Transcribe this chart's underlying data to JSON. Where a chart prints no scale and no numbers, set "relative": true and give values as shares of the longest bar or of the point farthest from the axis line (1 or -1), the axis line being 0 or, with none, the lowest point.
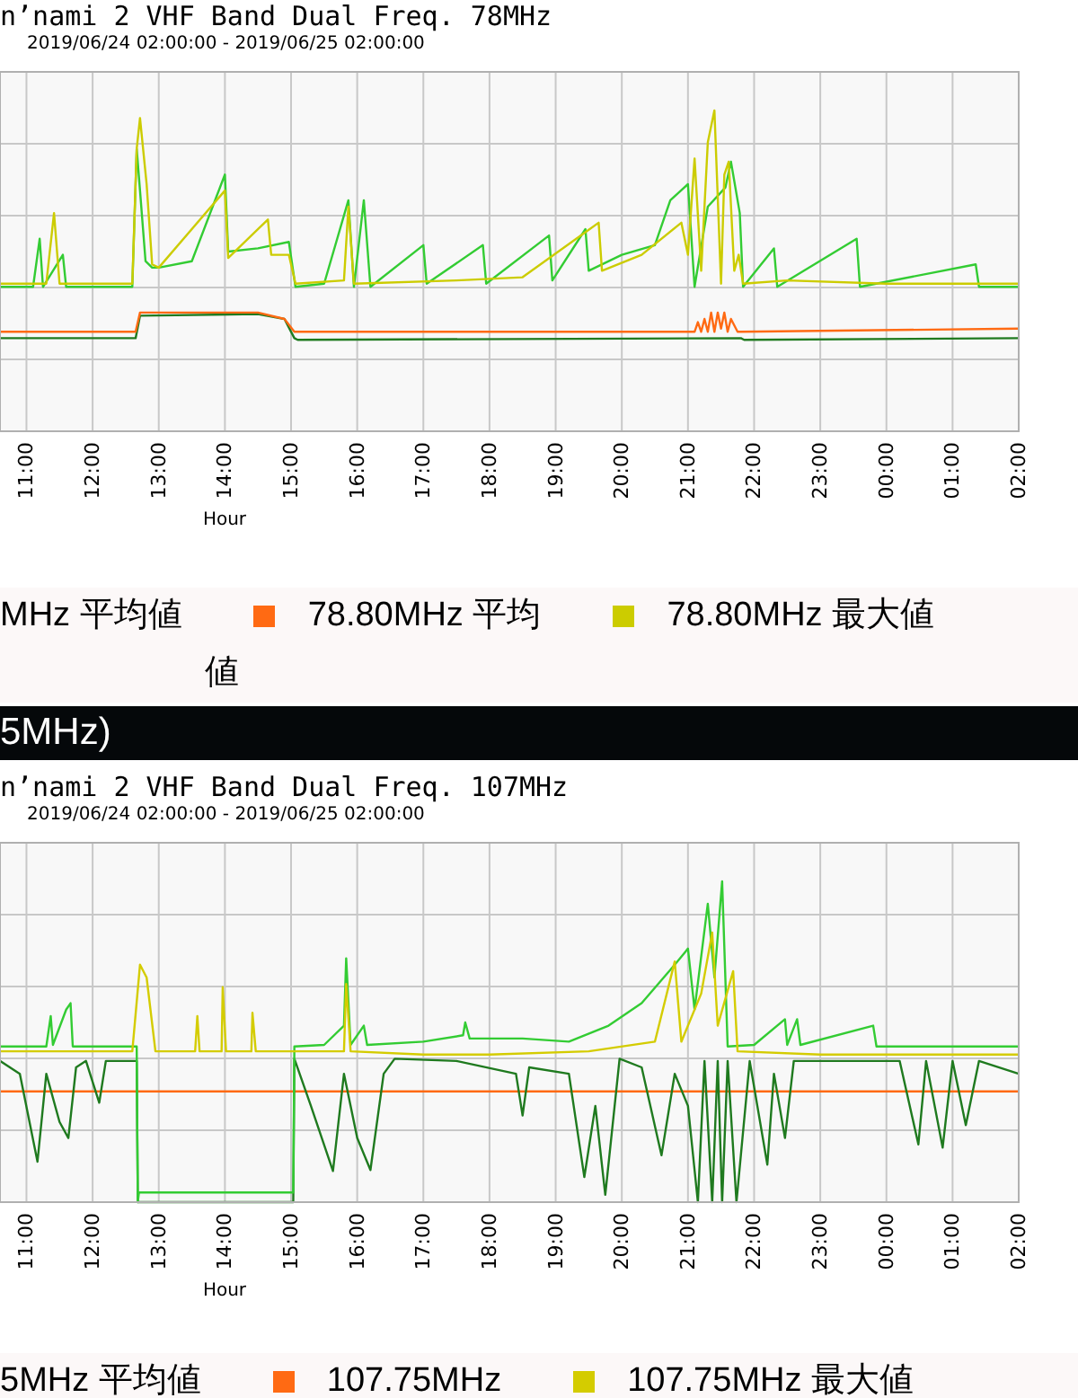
{
  "chart_data": [
    {
      "type": "line",
      "title": "n’nami 2 VHF Band Dual Freq. 78MHz",
      "subtitle": "2019/06/24 02:00:00 - 2019/06/25 02:00:00",
      "xlabel": "Hour",
      "xlim": [
        "2019-06-24T10:36",
        "2019-06-25T02:00"
      ],
      "xticks": [
        {
          "value": "2019-06-24T11:00",
          "label": "11:00"
        },
        {
          "value": "2019-06-24T12:00",
          "label": "12:00"
        },
        {
          "value": "2019-06-24T13:00",
          "label": "13:00"
        },
        {
          "value": "2019-06-24T14:00",
          "label": "14:00"
        },
        {
          "value": "2019-06-24T15:00",
          "label": "15:00"
        },
        {
          "value": "2019-06-24T16:00",
          "label": "16:00"
        },
        {
          "value": "2019-06-24T17:00",
          "label": "17:00"
        },
        {
          "value": "2019-06-24T18:00",
          "label": "18:00"
        },
        {
          "value": "2019-06-24T19:00",
          "label": "19:00"
        },
        {
          "value": "2019-06-24T20:00",
          "label": "20:00"
        },
        {
          "value": "2019-06-24T21:00",
          "label": "21:00"
        },
        {
          "value": "2019-06-24T22:00",
          "label": "22:00"
        },
        {
          "value": "2019-06-24T23:00",
          "label": "23:00"
        },
        {
          "value": "2019-06-25T00:00",
          "label": "00:00"
        },
        {
          "value": "2019-06-25T01:00",
          "label": "01:00"
        },
        {
          "value": "2019-06-25T02:00",
          "label": "02:00"
        }
      ],
      "relative": true,
      "grid": true,
      "legend": "bottom",
      "annotations": [
        "MHz 平均値",
        "値",
        "5MHz)"
      ],
      "series": [
        {
          "color": "#1f7a1f",
          "x": [
            "2019-06-24T10:36",
            "2019-06-24T12:39",
            "2019-06-24T12:43",
            "2019-06-24T14:30",
            "2019-06-24T14:54",
            "2019-06-24T15:03",
            "2019-06-24T15:06",
            "2019-06-24T21:48",
            "2019-06-24T21:51",
            "2019-06-25T02:00"
          ],
          "values": [
            0.29,
            0.29,
            0.36,
            0.365,
            0.35,
            0.29,
            0.285,
            0.29,
            0.285,
            0.29
          ]
        },
        {
          "name": "78.80MHz 平均",
          "color": "#ff6a13",
          "x": [
            "2019-06-24T10:36",
            "2019-06-24T12:39",
            "2019-06-24T12:43",
            "2019-06-24T13:30",
            "2019-06-24T14:30",
            "2019-06-24T14:54",
            "2019-06-24T15:03",
            "2019-06-24T15:06",
            "2019-06-24T21:06",
            "2019-06-24T21:09",
            "2019-06-24T21:12",
            "2019-06-24T21:15",
            "2019-06-24T21:18",
            "2019-06-24T21:21",
            "2019-06-24T21:24",
            "2019-06-24T21:27",
            "2019-06-24T21:30",
            "2019-06-24T21:33",
            "2019-06-24T21:36",
            "2019-06-24T21:39",
            "2019-06-24T21:45",
            "2019-06-24T21:48",
            "2019-06-25T02:00"
          ],
          "values": [
            0.31,
            0.31,
            0.37,
            0.37,
            0.37,
            0.35,
            0.31,
            0.31,
            0.31,
            0.34,
            0.31,
            0.35,
            0.31,
            0.37,
            0.31,
            0.37,
            0.32,
            0.37,
            0.31,
            0.35,
            0.31,
            0.31,
            0.32
          ]
        },
        {
          "color": "#33cc33",
          "x": [
            "2019-06-24T10:36",
            "2019-06-24T11:06",
            "2019-06-24T11:12",
            "2019-06-24T11:15",
            "2019-06-24T11:33",
            "2019-06-24T11:36",
            "2019-06-24T11:42",
            "2019-06-24T12:36",
            "2019-06-24T12:40",
            "2019-06-24T12:43",
            "2019-06-24T12:48",
            "2019-06-24T12:54",
            "2019-06-24T13:00",
            "2019-06-24T13:30",
            "2019-06-24T14:00",
            "2019-06-24T14:03",
            "2019-06-24T14:30",
            "2019-06-24T14:58",
            "2019-06-24T15:04",
            "2019-06-24T15:30",
            "2019-06-24T15:52",
            "2019-06-24T15:57",
            "2019-06-24T16:06",
            "2019-06-24T16:12",
            "2019-06-24T17:00",
            "2019-06-24T17:03",
            "2019-06-24T17:54",
            "2019-06-24T17:57",
            "2019-06-24T18:54",
            "2019-06-24T18:57",
            "2019-06-24T19:27",
            "2019-06-24T19:30",
            "2019-06-24T20:00",
            "2019-06-24T20:30",
            "2019-06-24T20:44",
            "2019-06-24T21:00",
            "2019-06-24T21:06",
            "2019-06-24T21:18",
            "2019-06-24T21:34",
            "2019-06-24T21:39",
            "2019-06-24T21:47",
            "2019-06-24T21:50",
            "2019-06-24T22:18",
            "2019-06-24T22:21",
            "2019-06-24T23:33",
            "2019-06-24T23:36",
            "2019-06-25T01:21",
            "2019-06-25T01:24",
            "2019-06-25T02:00"
          ],
          "values": [
            0.45,
            0.45,
            0.6,
            0.45,
            0.55,
            0.45,
            0.45,
            0.45,
            0.88,
            0.75,
            0.53,
            0.51,
            0.51,
            0.53,
            0.8,
            0.56,
            0.57,
            0.59,
            0.45,
            0.46,
            0.72,
            0.45,
            0.72,
            0.45,
            0.58,
            0.46,
            0.58,
            0.46,
            0.61,
            0.47,
            0.63,
            0.5,
            0.55,
            0.58,
            0.72,
            0.77,
            0.45,
            0.7,
            0.76,
            0.84,
            0.68,
            0.45,
            0.57,
            0.45,
            0.6,
            0.45,
            0.52,
            0.45,
            0.45
          ]
        },
        {
          "name": "78.80MHz 最大値",
          "color": "#cccc00",
          "x": [
            "2019-06-24T10:36",
            "2019-06-24T11:18",
            "2019-06-24T11:25",
            "2019-06-24T11:30",
            "2019-06-24T12:36",
            "2019-06-24T12:40",
            "2019-06-24T12:43",
            "2019-06-24T12:49",
            "2019-06-24T12:54",
            "2019-06-24T13:00",
            "2019-06-24T14:00",
            "2019-06-24T14:03",
            "2019-06-24T14:39",
            "2019-06-24T14:42",
            "2019-06-24T14:58",
            "2019-06-24T15:04",
            "2019-06-24T15:48",
            "2019-06-24T15:52",
            "2019-06-24T15:57",
            "2019-06-24T17:30",
            "2019-06-24T18:30",
            "2019-06-24T19:39",
            "2019-06-24T19:42",
            "2019-06-24T20:18",
            "2019-06-24T20:54",
            "2019-06-24T21:00",
            "2019-06-24T21:06",
            "2019-06-24T21:12",
            "2019-06-24T21:18",
            "2019-06-24T21:24",
            "2019-06-24T21:30",
            "2019-06-24T21:33",
            "2019-06-24T21:37",
            "2019-06-24T21:42",
            "2019-06-24T21:46",
            "2019-06-24T21:50",
            "2019-06-24T22:30",
            "2019-06-25T00:00",
            "2019-06-25T02:00"
          ],
          "values": [
            0.46,
            0.46,
            0.68,
            0.46,
            0.46,
            0.88,
            0.976,
            0.77,
            0.52,
            0.51,
            0.75,
            0.54,
            0.66,
            0.55,
            0.55,
            0.46,
            0.47,
            0.7,
            0.46,
            0.47,
            0.48,
            0.65,
            0.5,
            0.55,
            0.65,
            0.55,
            0.85,
            0.5,
            0.9,
            1.0,
            0.46,
            0.8,
            0.84,
            0.5,
            0.55,
            0.46,
            0.47,
            0.46,
            0.46
          ]
        }
      ]
    },
    {
      "type": "line",
      "title": "n’nami 2 VHF Band Dual Freq. 107MHz",
      "subtitle": "2019/06/24 02:00:00 - 2019/06/25 02:00:00",
      "xlabel": "Hour",
      "xlim": [
        "2019-06-24T10:36",
        "2019-06-25T02:00"
      ],
      "xticks": [
        {
          "value": "2019-06-24T11:00",
          "label": "11:00"
        },
        {
          "value": "2019-06-24T12:00",
          "label": "12:00"
        },
        {
          "value": "2019-06-24T13:00",
          "label": "13:00"
        },
        {
          "value": "2019-06-24T14:00",
          "label": "14:00"
        },
        {
          "value": "2019-06-24T15:00",
          "label": "15:00"
        },
        {
          "value": "2019-06-24T16:00",
          "label": "16:00"
        },
        {
          "value": "2019-06-24T17:00",
          "label": "17:00"
        },
        {
          "value": "2019-06-24T18:00",
          "label": "18:00"
        },
        {
          "value": "2019-06-24T19:00",
          "label": "19:00"
        },
        {
          "value": "2019-06-24T20:00",
          "label": "20:00"
        },
        {
          "value": "2019-06-24T21:00",
          "label": "21:00"
        },
        {
          "value": "2019-06-24T22:00",
          "label": "22:00"
        },
        {
          "value": "2019-06-24T23:00",
          "label": "23:00"
        },
        {
          "value": "2019-06-25T00:00",
          "label": "00:00"
        },
        {
          "value": "2019-06-25T01:00",
          "label": "01:00"
        },
        {
          "value": "2019-06-25T02:00",
          "label": "02:00"
        }
      ],
      "relative": true,
      "grid": true,
      "legend": "bottom",
      "annotations": [
        "5MHz 平均値"
      ],
      "series": [
        {
          "name": "107.75MHz",
          "color": "#ff6a13",
          "x": [
            "2019-06-24T10:36",
            "2019-06-25T02:00"
          ],
          "values": [
            0.345,
            0.345
          ]
        },
        {
          "color": "#1f7a1f",
          "x": [
            "2019-06-24T10:36",
            "2019-06-24T10:54",
            "2019-06-24T11:10",
            "2019-06-24T11:18",
            "2019-06-24T11:30",
            "2019-06-24T11:38",
            "2019-06-24T11:45",
            "2019-06-24T11:54",
            "2019-06-24T12:06",
            "2019-06-24T12:12",
            "2019-06-24T12:40",
            "2019-06-24T12:41",
            "2019-06-24T15:02",
            "2019-06-24T15:03",
            "2019-06-24T15:18",
            "2019-06-24T15:38",
            "2019-06-24T15:48",
            "2019-06-24T16:00",
            "2019-06-24T16:12",
            "2019-06-24T16:24",
            "2019-06-24T16:34",
            "2019-06-24T17:30",
            "2019-06-24T18:24",
            "2019-06-24T18:30",
            "2019-06-24T18:36",
            "2019-06-24T19:12",
            "2019-06-24T19:26",
            "2019-06-24T19:36",
            "2019-06-24T19:45",
            "2019-06-24T19:58",
            "2019-06-24T20:18",
            "2019-06-24T20:36",
            "2019-06-24T20:48",
            "2019-06-24T21:00",
            "2019-06-24T21:09",
            "2019-06-24T21:15",
            "2019-06-24T21:22",
            "2019-06-24T21:27",
            "2019-06-24T21:31",
            "2019-06-24T21:36",
            "2019-06-24T21:44",
            "2019-06-24T21:56",
            "2019-06-24T22:12",
            "2019-06-24T22:18",
            "2019-06-24T22:28",
            "2019-06-24T22:36",
            "2019-06-25T00:12",
            "2019-06-25T00:29",
            "2019-06-25T00:36",
            "2019-06-25T00:51",
            "2019-06-25T01:00",
            "2019-06-25T01:12",
            "2019-06-25T01:24",
            "2019-06-25T02:00"
          ],
          "values": [
            0.44,
            0.4,
            0.126,
            0.4,
            0.25,
            0.2,
            0.42,
            0.44,
            0.31,
            0.44,
            0.44,
            0,
            0,
            0.447,
            0.3,
            0.097,
            0.4,
            0.2,
            0.1,
            0.4,
            0.447,
            0.44,
            0.4,
            0.27,
            0.42,
            0.4,
            0.078,
            0.3,
            0.023,
            0.447,
            0.42,
            0.146,
            0.4,
            0.3,
            0,
            0.44,
            0,
            0.44,
            0,
            0.44,
            0,
            0.44,
            0.117,
            0.4,
            0.2,
            0.44,
            0.44,
            0.18,
            0.44,
            0.17,
            0.44,
            0.24,
            0.44,
            0.4
          ]
        },
        {
          "color": "#33cc33",
          "x": [
            "2019-06-24T10:36",
            "2019-06-24T11:18",
            "2019-06-24T11:22",
            "2019-06-24T11:24",
            "2019-06-24T11:36",
            "2019-06-24T11:40",
            "2019-06-24T11:42",
            "2019-06-24T12:40",
            "2019-06-24T12:41",
            "2019-06-24T12:42",
            "2019-06-24T13:30",
            "2019-06-24T14:30",
            "2019-06-24T15:02",
            "2019-06-24T15:03",
            "2019-06-24T15:30",
            "2019-06-24T15:48",
            "2019-06-24T15:50",
            "2019-06-24T15:54",
            "2019-06-24T16:06",
            "2019-06-24T16:09",
            "2019-06-24T17:00",
            "2019-06-24T17:36",
            "2019-06-24T17:38",
            "2019-06-24T17:42",
            "2019-06-24T18:30",
            "2019-06-24T19:12",
            "2019-06-24T19:48",
            "2019-06-24T20:18",
            "2019-06-24T20:48",
            "2019-06-24T21:00",
            "2019-06-24T21:06",
            "2019-06-24T21:18",
            "2019-06-24T21:24",
            "2019-06-24T21:31",
            "2019-06-24T21:36",
            "2019-06-24T22:00",
            "2019-06-24T22:28",
            "2019-06-24T22:30",
            "2019-06-24T22:39",
            "2019-06-24T22:42",
            "2019-06-24T23:48",
            "2019-06-24T23:51",
            "2019-06-25T02:00"
          ],
          "values": [
            0.485,
            0.485,
            0.58,
            0.49,
            0.6,
            0.62,
            0.485,
            0.485,
            0,
            0.03,
            0.03,
            0.03,
            0.03,
            0.485,
            0.49,
            0.55,
            0.76,
            0.49,
            0.55,
            0.49,
            0.5,
            0.52,
            0.56,
            0.51,
            0.51,
            0.5,
            0.55,
            0.62,
            0.74,
            0.79,
            0.6,
            0.93,
            0.7,
            1.0,
            0.485,
            0.49,
            0.57,
            0.49,
            0.57,
            0.49,
            0.55,
            0.485,
            0.485
          ]
        },
        {
          "name": "107.75MHz 最大値",
          "color": "#d4cc00",
          "x": [
            "2019-06-24T10:36",
            "2019-06-24T12:36",
            "2019-06-24T12:43",
            "2019-06-24T12:49",
            "2019-06-24T12:57",
            "2019-06-24T13:33",
            "2019-06-24T13:35",
            "2019-06-24T13:37",
            "2019-06-24T13:57",
            "2019-06-24T13:58",
            "2019-06-24T14:01",
            "2019-06-24T14:24",
            "2019-06-24T14:25",
            "2019-06-24T14:28",
            "2019-06-24T15:48",
            "2019-06-24T15:50",
            "2019-06-24T15:54",
            "2019-06-24T17:00",
            "2019-06-24T18:00",
            "2019-06-24T19:30",
            "2019-06-24T20:30",
            "2019-06-24T20:48",
            "2019-06-24T20:54",
            "2019-06-24T21:12",
            "2019-06-24T21:22",
            "2019-06-24T21:27",
            "2019-06-24T21:41",
            "2019-06-24T21:45",
            "2019-06-24T23:00",
            "2019-06-25T02:00"
          ],
          "values": [
            0.47,
            0.47,
            0.74,
            0.7,
            0.47,
            0.47,
            0.58,
            0.47,
            0.47,
            0.67,
            0.47,
            0.47,
            0.59,
            0.47,
            0.47,
            0.68,
            0.47,
            0.46,
            0.46,
            0.47,
            0.5,
            0.75,
            0.5,
            0.65,
            0.84,
            0.55,
            0.72,
            0.47,
            0.46,
            0.46
          ]
        }
      ]
    }
  ]
}
